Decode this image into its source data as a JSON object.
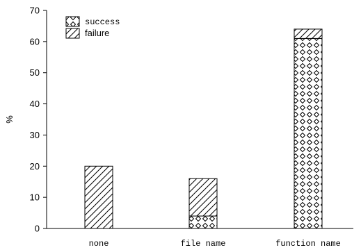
{
  "chart_data": {
    "type": "bar",
    "stacked": true,
    "categories": [
      "none",
      "file name",
      "function name"
    ],
    "series": [
      {
        "name": "success",
        "values": [
          0,
          4,
          61
        ],
        "pattern": "diamond-cross-hatch"
      },
      {
        "name": "failure",
        "values": [
          20,
          12,
          3
        ],
        "pattern": "diagonal-hatch"
      }
    ],
    "title": "",
    "xlabel": "",
    "ylabel": "%",
    "ylim": [
      0,
      70
    ],
    "yticks": [
      "0",
      "10",
      "20",
      "30",
      "40",
      "50",
      "60",
      "70"
    ],
    "grid": false,
    "legend_position": "top-left",
    "colors": {
      "fill": "#ffffff",
      "stroke": "#000000"
    }
  }
}
